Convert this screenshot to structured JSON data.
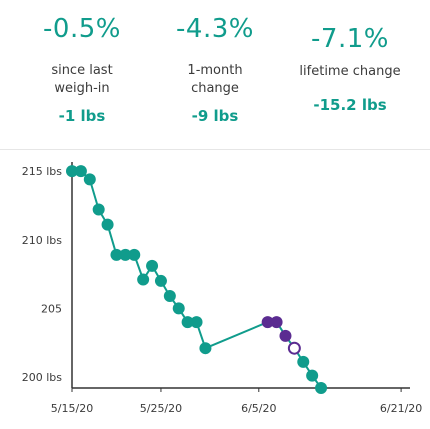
{
  "stats": [
    {
      "percent": "-0.5%",
      "desc_line1": "since last",
      "desc_line2": "weigh-in",
      "lbs": "-1 lbs"
    },
    {
      "percent": "-4.3%",
      "desc_line1": "1-month",
      "desc_line2": "change",
      "lbs": "-9 lbs"
    },
    {
      "percent": "-7.1%",
      "desc_line1": "lifetime change",
      "desc_line2": "",
      "lbs": "-15.2 lbs"
    }
  ],
  "colors": {
    "accent": "#109c8c",
    "highlight": "#5b2c91",
    "axis": "#333333"
  },
  "chart_data": {
    "type": "line",
    "title": "",
    "xlabel": "",
    "ylabel": "",
    "ylim": [
      199.2,
      215.3
    ],
    "xlim": [
      "5/15/20",
      "6/22/20"
    ],
    "y_ticks": [
      {
        "value": 215,
        "label": "215 lbs"
      },
      {
        "value": 210,
        "label": "210 lbs"
      },
      {
        "value": 205,
        "label": "205"
      },
      {
        "value": 200,
        "label": "200 lbs"
      }
    ],
    "x_ticks": [
      {
        "value": "5/15/20",
        "label": "5/15/20"
      },
      {
        "value": "5/25/20",
        "label": "5/25/20"
      },
      {
        "value": "6/5/20",
        "label": "6/5/20"
      },
      {
        "value": "6/21/20",
        "label": "6/21/20"
      }
    ],
    "grid": false,
    "series": [
      {
        "points": [
          {
            "x": "5/15/20",
            "y": 215
          },
          {
            "x": "5/16/20",
            "y": 215
          },
          {
            "x": "5/17/20",
            "y": 214.4
          },
          {
            "x": "5/18/20",
            "y": 212.2
          },
          {
            "x": "5/19/20",
            "y": 211.1
          },
          {
            "x": "5/20/20",
            "y": 208.9
          },
          {
            "x": "5/21/20",
            "y": 208.9
          },
          {
            "x": "5/22/20",
            "y": 208.9
          },
          {
            "x": "5/23/20",
            "y": 207.1
          },
          {
            "x": "5/24/20",
            "y": 208.1
          },
          {
            "x": "5/25/20",
            "y": 207.0
          },
          {
            "x": "5/26/20",
            "y": 205.9
          },
          {
            "x": "5/27/20",
            "y": 205.0
          },
          {
            "x": "5/28/20",
            "y": 204.0
          },
          {
            "x": "5/29/20",
            "y": 204.0
          },
          {
            "x": "5/30/20",
            "y": 202.1
          },
          {
            "x": "6/6/20",
            "y": 204.0,
            "style": "highlight"
          },
          {
            "x": "6/7/20",
            "y": 204.0,
            "style": "highlight"
          },
          {
            "x": "6/8/20",
            "y": 203.0,
            "style": "highlight"
          },
          {
            "x": "6/9/20",
            "y": 202.1,
            "style": "highlight-open"
          },
          {
            "x": "6/10/20",
            "y": 201.1
          },
          {
            "x": "6/11/20",
            "y": 200.1
          },
          {
            "x": "6/12/20",
            "y": 199.2
          }
        ]
      }
    ]
  }
}
